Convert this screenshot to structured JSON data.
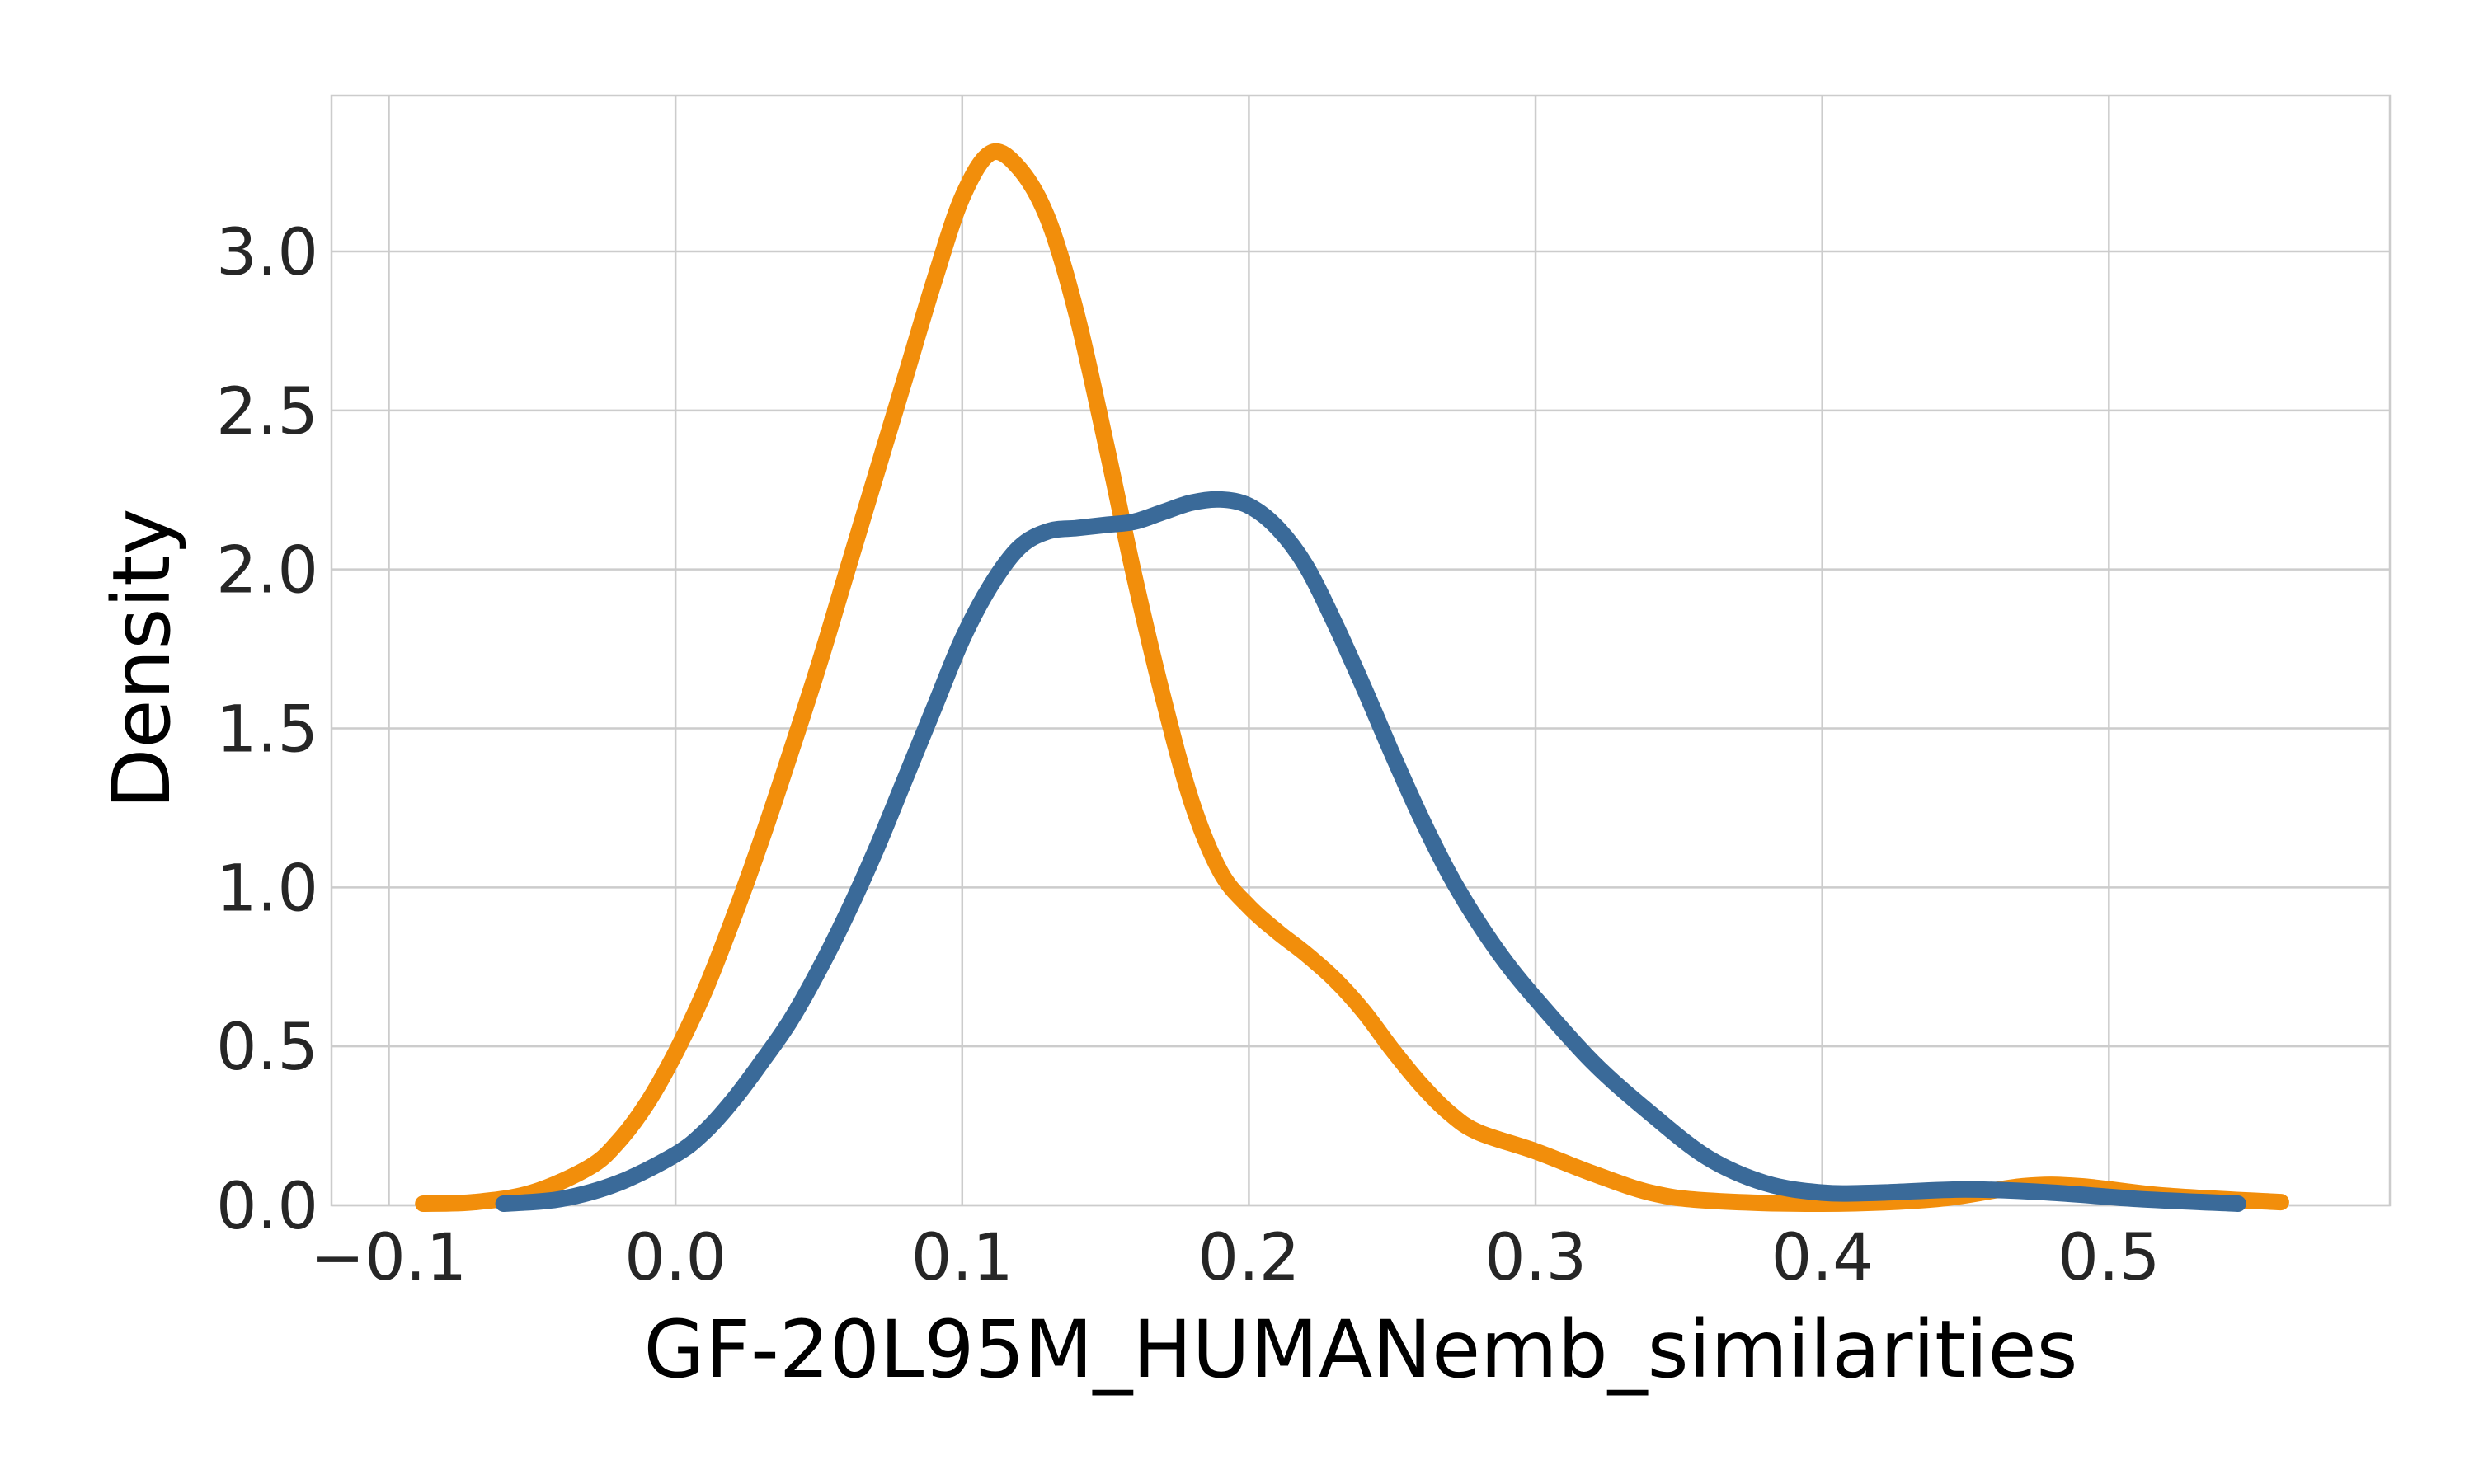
{
  "chart_data": {
    "type": "line",
    "title": "",
    "xlabel": "GF-20L95M_HUMANemb_similarities",
    "ylabel": "Density",
    "xlim": [
      -0.12,
      0.598
    ],
    "ylim": [
      0,
      3.49
    ],
    "x_ticks": [
      -0.1,
      0.0,
      0.1,
      0.2,
      0.3,
      0.4,
      0.5
    ],
    "x_tick_labels": [
      "−0.1",
      "0.0",
      "0.1",
      "0.2",
      "0.3",
      "0.4",
      "0.5"
    ],
    "y_ticks": [
      0.0,
      0.5,
      1.0,
      1.5,
      2.0,
      2.5,
      3.0
    ],
    "y_tick_labels": [
      "0.0",
      "0.5",
      "1.0",
      "1.5",
      "2.0",
      "2.5",
      "3.0"
    ],
    "grid": true,
    "legend": false,
    "series": [
      {
        "color": "#f28e0b",
        "points": [
          [
            -0.088,
            0.0
          ],
          [
            -0.07,
            0.01
          ],
          [
            -0.05,
            0.04
          ],
          [
            -0.03,
            0.12
          ],
          [
            -0.02,
            0.2
          ],
          [
            -0.01,
            0.32
          ],
          [
            0.0,
            0.48
          ],
          [
            0.01,
            0.67
          ],
          [
            0.02,
            0.9
          ],
          [
            0.03,
            1.15
          ],
          [
            0.04,
            1.42
          ],
          [
            0.05,
            1.7
          ],
          [
            0.06,
            2.0
          ],
          [
            0.07,
            2.3
          ],
          [
            0.08,
            2.6
          ],
          [
            0.09,
            2.9
          ],
          [
            0.1,
            3.17
          ],
          [
            0.11,
            3.31
          ],
          [
            0.12,
            3.26
          ],
          [
            0.13,
            3.1
          ],
          [
            0.14,
            2.8
          ],
          [
            0.15,
            2.4
          ],
          [
            0.16,
            1.98
          ],
          [
            0.17,
            1.6
          ],
          [
            0.18,
            1.27
          ],
          [
            0.19,
            1.05
          ],
          [
            0.2,
            0.94
          ],
          [
            0.21,
            0.86
          ],
          [
            0.22,
            0.79
          ],
          [
            0.23,
            0.71
          ],
          [
            0.24,
            0.61
          ],
          [
            0.25,
            0.49
          ],
          [
            0.26,
            0.38
          ],
          [
            0.27,
            0.29
          ],
          [
            0.28,
            0.23
          ],
          [
            0.3,
            0.17
          ],
          [
            0.32,
            0.1
          ],
          [
            0.34,
            0.04
          ],
          [
            0.36,
            0.015
          ],
          [
            0.4,
            0.005
          ],
          [
            0.44,
            0.02
          ],
          [
            0.47,
            0.06
          ],
          [
            0.49,
            0.06
          ],
          [
            0.52,
            0.03
          ],
          [
            0.56,
            0.01
          ]
        ]
      },
      {
        "color": "#3a6a99",
        "points": [
          [
            -0.06,
            0.0
          ],
          [
            -0.04,
            0.02
          ],
          [
            -0.02,
            0.07
          ],
          [
            0.0,
            0.16
          ],
          [
            0.01,
            0.23
          ],
          [
            0.02,
            0.33
          ],
          [
            0.03,
            0.45
          ],
          [
            0.04,
            0.58
          ],
          [
            0.05,
            0.74
          ],
          [
            0.06,
            0.92
          ],
          [
            0.07,
            1.12
          ],
          [
            0.08,
            1.34
          ],
          [
            0.09,
            1.56
          ],
          [
            0.1,
            1.78
          ],
          [
            0.11,
            1.95
          ],
          [
            0.12,
            2.07
          ],
          [
            0.13,
            2.12
          ],
          [
            0.14,
            2.13
          ],
          [
            0.15,
            2.14
          ],
          [
            0.16,
            2.15
          ],
          [
            0.17,
            2.18
          ],
          [
            0.18,
            2.21
          ],
          [
            0.19,
            2.22
          ],
          [
            0.2,
            2.2
          ],
          [
            0.21,
            2.13
          ],
          [
            0.22,
            2.01
          ],
          [
            0.23,
            1.83
          ],
          [
            0.24,
            1.63
          ],
          [
            0.25,
            1.42
          ],
          [
            0.26,
            1.22
          ],
          [
            0.27,
            1.04
          ],
          [
            0.28,
            0.89
          ],
          [
            0.29,
            0.76
          ],
          [
            0.3,
            0.65
          ],
          [
            0.32,
            0.45
          ],
          [
            0.34,
            0.29
          ],
          [
            0.36,
            0.15
          ],
          [
            0.38,
            0.07
          ],
          [
            0.4,
            0.04
          ],
          [
            0.42,
            0.04
          ],
          [
            0.45,
            0.05
          ],
          [
            0.48,
            0.04
          ],
          [
            0.51,
            0.02
          ],
          [
            0.545,
            0.005
          ]
        ]
      }
    ]
  }
}
